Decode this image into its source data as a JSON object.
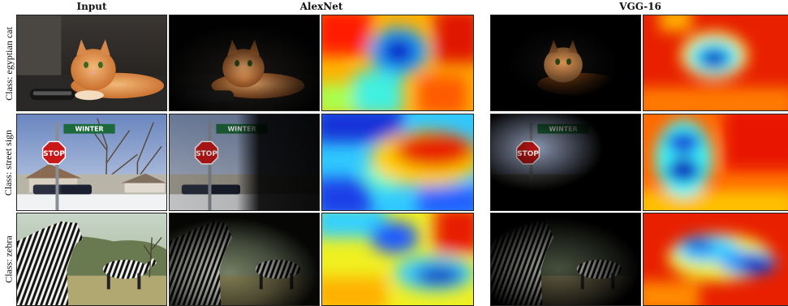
{
  "headers": {
    "input": "Input",
    "alexnet": "AlexNet",
    "vgg16": "VGG-16"
  },
  "rows": [
    {
      "label": "Class: egyptian cat",
      "sign_text": ""
    },
    {
      "label": "Class: street sign",
      "sign_text": "WINTER",
      "stop_text": "STOP"
    },
    {
      "label": "Class: zebra",
      "sign_text": ""
    }
  ],
  "colors": {
    "heat_red": "#d81c00",
    "heat_orange": "#ff8a00",
    "heat_yellow": "#f5f018",
    "heat_cyan": "#22e6f0",
    "heat_blue": "#1a3ad8",
    "heat_navy": "#06108a"
  }
}
